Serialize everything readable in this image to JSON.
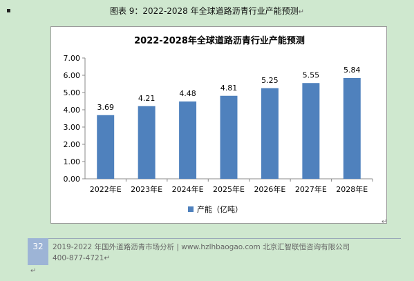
{
  "document": {
    "caption": "图表 9：2022-2028 年全球道路沥青行业产能预测",
    "paragraph_mark": "↵",
    "return_mark": "↵"
  },
  "footer": {
    "page_number": "32",
    "line1": "2019-2022 年国外道路沥青市场分析 | www.hzlhbaogao.com 北京汇智联恒咨询有限公司",
    "line2": "400-877-4721",
    "line2_mark": "↵"
  },
  "chart_data": {
    "type": "bar",
    "title": "2022-2028年全球道路沥青行业产能预测",
    "categories": [
      "2022年E",
      "2023年E",
      "2024年E",
      "2025年E",
      "2026年E",
      "2027年E",
      "2028年E"
    ],
    "series": [
      {
        "name": "产能（亿吨）",
        "values": [
          3.69,
          4.21,
          4.48,
          4.81,
          5.25,
          5.55,
          5.84
        ],
        "color": "#4f81bd"
      }
    ],
    "data_labels": [
      "3.69",
      "4.21",
      "4.48",
      "4.81",
      "5.25",
      "5.55",
      "5.84"
    ],
    "y_ticks": [
      "0.00",
      "1.00",
      "2.00",
      "3.00",
      "4.00",
      "5.00",
      "6.00",
      "7.00"
    ],
    "ylim": [
      0,
      7
    ],
    "grid": false,
    "legend_position": "bottom"
  }
}
